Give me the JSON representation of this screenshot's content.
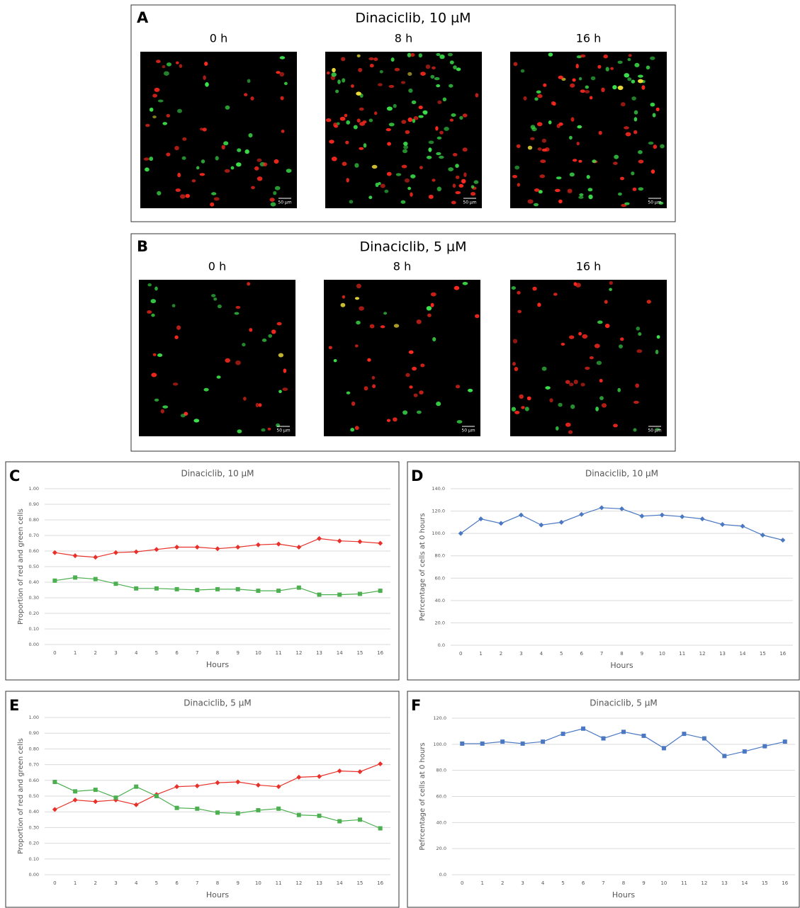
{
  "panels": [
    {
      "letter": "A",
      "title": "Dinaciclib, 10 µM",
      "images": [
        {
          "label": "0 h",
          "scale_bar": "50 µm"
        },
        {
          "label": "8 h",
          "scale_bar": "50 µm"
        },
        {
          "label": "16 h",
          "scale_bar": "50 µm"
        }
      ]
    },
    {
      "letter": "B",
      "title": "Dinaciclib, 5 µM",
      "images": [
        {
          "label": "0 h",
          "scale_bar": "50 µm"
        },
        {
          "label": "8 h",
          "scale_bar": "50 µm"
        },
        {
          "label": "16 h",
          "scale_bar": "50 µm"
        }
      ]
    }
  ],
  "chart_data": [
    {
      "type": "line",
      "panel_label": "C",
      "title": "Dinaciclib, 10 µM",
      "x_label": "Hours",
      "y_label": "Proportion of red and green cells",
      "categories": [
        "0",
        "1",
        "2",
        "3",
        "4",
        "5",
        "6",
        "7",
        "8",
        "9",
        "10",
        "11",
        "12",
        "13",
        "14",
        "15",
        "16"
      ],
      "ylim": [
        0,
        1
      ],
      "yticks": [
        {
          "value": 0,
          "label": "0.00"
        },
        {
          "value": 0.1,
          "label": "0.10"
        },
        {
          "value": 0.2,
          "label": "0.20"
        },
        {
          "value": 0.3,
          "label": "0.30"
        },
        {
          "value": 0.4,
          "label": "0.40"
        },
        {
          "value": 0.5,
          "label": "0.50"
        },
        {
          "value": 0.6,
          "label": "0.60"
        },
        {
          "value": 0.7,
          "label": "0.70"
        },
        {
          "value": 0.8,
          "label": "0.80"
        },
        {
          "value": 0.9,
          "label": "0.90"
        },
        {
          "value": 1,
          "label": "1.00"
        }
      ],
      "grid": true,
      "series": [
        {
          "color": "#e8312a",
          "marker": "diamond",
          "values": [
            0.59,
            0.57,
            0.56,
            0.59,
            0.595,
            0.61,
            0.625,
            0.625,
            0.615,
            0.625,
            0.64,
            0.645,
            0.625,
            0.68,
            0.665,
            0.66,
            0.65
          ]
        },
        {
          "color": "#4caf50",
          "marker": "square",
          "values": [
            0.41,
            0.43,
            0.42,
            0.39,
            0.36,
            0.36,
            0.355,
            0.35,
            0.355,
            0.355,
            0.345,
            0.345,
            0.365,
            0.32,
            0.32,
            0.325,
            0.345
          ]
        }
      ]
    },
    {
      "type": "line",
      "panel_label": "D",
      "title": "Dinaciclib, 10 µM",
      "x_label": "Hours",
      "y_label": "Pefrcentage of cells at 0 hours",
      "categories": [
        "0",
        "1",
        "2",
        "3",
        "4",
        "5",
        "6",
        "7",
        "8",
        "9",
        "10",
        "11",
        "12",
        "13",
        "14",
        "15",
        "16"
      ],
      "ylim": [
        0,
        140
      ],
      "yticks": [
        {
          "value": 0,
          "label": "0.0"
        },
        {
          "value": 20,
          "label": "20.0"
        },
        {
          "value": 40,
          "label": "40.0"
        },
        {
          "value": 60,
          "label": "60.0"
        },
        {
          "value": 80,
          "label": "80.0"
        },
        {
          "value": 100,
          "label": "100.0"
        },
        {
          "value": 120,
          "label": "120.0"
        },
        {
          "value": 140,
          "label": "140.0"
        }
      ],
      "grid": true,
      "series": [
        {
          "color": "#4a78c2",
          "marker": "diamond",
          "values": [
            100,
            113,
            109,
            116.5,
            107.5,
            110,
            117,
            123,
            122,
            115.5,
            116.5,
            115,
            113,
            108,
            106.5,
            98.5,
            94
          ]
        }
      ]
    },
    {
      "type": "line",
      "panel_label": "E",
      "title": "Dinaciclib, 5 µM",
      "x_label": "Hours",
      "y_label": "Proportion of red and green cells",
      "categories": [
        "0",
        "1",
        "2",
        "3",
        "4",
        "5",
        "6",
        "7",
        "8",
        "9",
        "10",
        "11",
        "12",
        "13",
        "14",
        "15",
        "16"
      ],
      "ylim": [
        0,
        1
      ],
      "yticks": [
        {
          "value": 0,
          "label": "0.00"
        },
        {
          "value": 0.1,
          "label": "0.10"
        },
        {
          "value": 0.2,
          "label": "0.20"
        },
        {
          "value": 0.3,
          "label": "0.30"
        },
        {
          "value": 0.4,
          "label": "0.40"
        },
        {
          "value": 0.5,
          "label": "0.50"
        },
        {
          "value": 0.6,
          "label": "0.60"
        },
        {
          "value": 0.7,
          "label": "0.70"
        },
        {
          "value": 0.8,
          "label": "0.80"
        },
        {
          "value": 0.9,
          "label": "0.90"
        },
        {
          "value": 1,
          "label": "1.00"
        }
      ],
      "grid": true,
      "series": [
        {
          "color": "#e8312a",
          "marker": "diamond",
          "values": [
            0.415,
            0.475,
            0.465,
            0.475,
            0.445,
            0.51,
            0.56,
            0.565,
            0.585,
            0.59,
            0.57,
            0.56,
            0.62,
            0.625,
            0.66,
            0.655,
            0.705
          ]
        },
        {
          "color": "#4caf50",
          "marker": "square",
          "values": [
            0.59,
            0.53,
            0.54,
            0.49,
            0.56,
            0.5,
            0.425,
            0.42,
            0.395,
            0.39,
            0.41,
            0.42,
            0.38,
            0.375,
            0.34,
            0.35,
            0.295
          ]
        }
      ]
    },
    {
      "type": "line",
      "panel_label": "F",
      "title": "Dinaciclib, 5 µM",
      "x_label": "Hours",
      "y_label": "Pefrcentage of cells at 0 hours",
      "categories": [
        "0",
        "1",
        "2",
        "3",
        "4",
        "5",
        "6",
        "7",
        "8",
        "9",
        "10",
        "11",
        "12",
        "13",
        "14",
        "15",
        "16"
      ],
      "ylim": [
        0,
        120
      ],
      "yticks": [
        {
          "value": 0,
          "label": "0.0"
        },
        {
          "value": 20,
          "label": "20.0"
        },
        {
          "value": 40,
          "label": "40.0"
        },
        {
          "value": 60,
          "label": "60.0"
        },
        {
          "value": 80,
          "label": "80.0"
        },
        {
          "value": 100,
          "label": "100.0"
        },
        {
          "value": 120,
          "label": "120.0"
        }
      ],
      "grid": true,
      "series": [
        {
          "color": "#4a78c2",
          "marker": "square",
          "values": [
            100.5,
            100.5,
            102,
            100.5,
            102,
            108,
            112,
            104.5,
            109.5,
            106.5,
            97,
            108,
            104.5,
            91,
            94.5,
            98.5,
            102
          ]
        }
      ]
    }
  ]
}
